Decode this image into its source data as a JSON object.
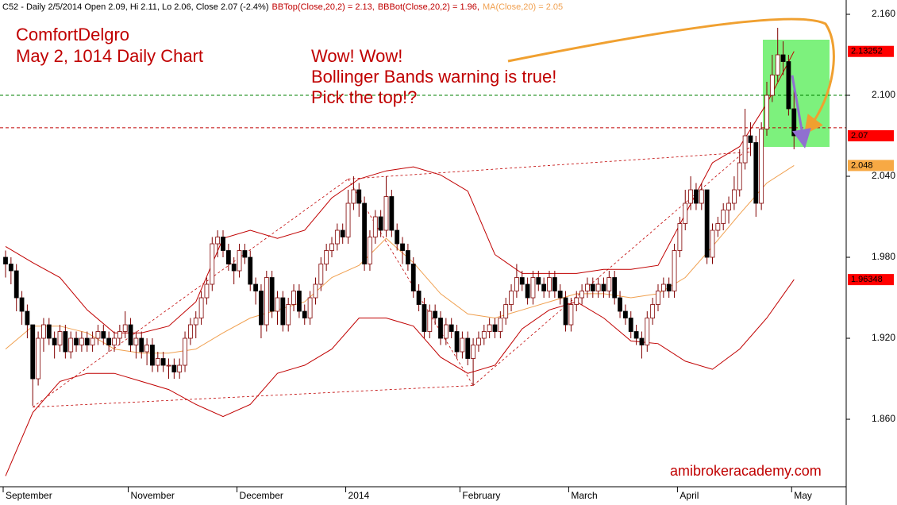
{
  "chart_data": {
    "type": "candlestick",
    "header": "C52 - Daily 2/5/2014 Open 2.09, Hi 2.11, Lo 2.06, Close 2.07 (-2.4%)",
    "title": "ComfortDelgro",
    "subtitle": "May 2, 1014 Daily Chart",
    "annotations": [
      "Wow! Wow!",
      "Bollinger Bands warning is true!",
      "Pick the top!?"
    ],
    "watermark": "amibrokeracademy.com",
    "ylim": [
      1.8106,
      2.1706
    ],
    "yticks": [
      {
        "value": 1.86,
        "label": "1.860"
      },
      {
        "value": 1.92,
        "label": "1.920"
      },
      {
        "value": 1.98,
        "label": "1.980"
      },
      {
        "value": 2.04,
        "label": "2.040"
      },
      {
        "value": 2.1,
        "label": "2.100"
      },
      {
        "value": 2.16,
        "label": "2.160"
      }
    ],
    "categories": [
      "September",
      null,
      null,
      null,
      null,
      null,
      null,
      null,
      null,
      null,
      null,
      null,
      null,
      null,
      null,
      null,
      null,
      null,
      null,
      null,
      null,
      null,
      null,
      "November",
      null,
      null,
      null,
      null,
      null,
      null,
      null,
      null,
      null,
      null,
      null,
      null,
      null,
      null,
      null,
      null,
      null,
      null,
      null,
      "December",
      null,
      null,
      null,
      null,
      null,
      null,
      null,
      null,
      null,
      null,
      null,
      null,
      null,
      null,
      null,
      null,
      null,
      null,
      null,
      "2014",
      null,
      null,
      null,
      null,
      null,
      null,
      null,
      null,
      null,
      null,
      null,
      null,
      null,
      null,
      null,
      null,
      null,
      null,
      null,
      null,
      "February",
      null,
      null,
      null,
      null,
      null,
      null,
      null,
      null,
      null,
      null,
      null,
      null,
      null,
      null,
      null,
      null,
      null,
      null,
      null,
      "March",
      null,
      null,
      null,
      null,
      null,
      null,
      null,
      null,
      null,
      null,
      null,
      null,
      null,
      null,
      null,
      null,
      null,
      null,
      null,
      "April",
      null,
      null,
      null,
      null,
      null,
      null,
      null,
      null,
      null,
      null,
      null,
      null,
      null,
      null,
      null,
      null,
      null,
      null,
      null,
      null,
      "May"
    ],
    "up_color": "#ffffff",
    "down_color": "#000000",
    "wick_color": "#800000",
    "ohlc": [
      [
        1.98,
        1.985,
        1.965,
        1.975
      ],
      [
        1.975,
        1.98,
        1.96,
        1.97
      ],
      [
        1.97,
        1.975,
        1.94,
        1.95
      ],
      [
        1.95,
        1.955,
        1.93,
        1.94
      ],
      [
        1.94,
        1.945,
        1.92,
        1.93
      ],
      [
        1.93,
        1.93,
        1.87,
        1.89
      ],
      [
        1.89,
        1.925,
        1.885,
        1.92
      ],
      [
        1.92,
        1.935,
        1.91,
        1.93
      ],
      [
        1.93,
        1.935,
        1.915,
        1.92
      ],
      [
        1.92,
        1.925,
        1.905,
        1.915
      ],
      [
        1.915,
        1.93,
        1.91,
        1.925
      ],
      [
        1.925,
        1.93,
        1.905,
        1.91
      ],
      [
        1.91,
        1.925,
        1.905,
        1.92
      ],
      [
        1.92,
        1.925,
        1.91,
        1.915
      ],
      [
        1.915,
        1.925,
        1.91,
        1.92
      ],
      [
        1.92,
        1.925,
        1.91,
        1.915
      ],
      [
        1.915,
        1.925,
        1.91,
        1.92
      ],
      [
        1.92,
        1.93,
        1.915,
        1.925
      ],
      [
        1.925,
        1.93,
        1.915,
        1.92
      ],
      [
        1.92,
        1.925,
        1.91,
        1.915
      ],
      [
        1.915,
        1.925,
        1.91,
        1.92
      ],
      [
        1.92,
        1.93,
        1.915,
        1.925
      ],
      [
        1.925,
        1.94,
        1.92,
        1.93
      ],
      [
        1.93,
        1.935,
        1.91,
        1.915
      ],
      [
        1.915,
        1.925,
        1.905,
        1.92
      ],
      [
        1.92,
        1.925,
        1.905,
        1.91
      ],
      [
        1.91,
        1.92,
        1.9,
        1.915
      ],
      [
        1.915,
        1.92,
        1.895,
        1.9
      ],
      [
        1.9,
        1.91,
        1.895,
        1.905
      ],
      [
        1.905,
        1.91,
        1.895,
        1.9
      ],
      [
        1.9,
        1.905,
        1.89,
        1.9
      ],
      [
        1.9,
        1.905,
        1.89,
        1.895
      ],
      [
        1.895,
        1.905,
        1.89,
        1.9
      ],
      [
        1.9,
        1.925,
        1.895,
        1.92
      ],
      [
        1.92,
        1.935,
        1.915,
        1.93
      ],
      [
        1.93,
        1.94,
        1.92,
        1.935
      ],
      [
        1.935,
        1.955,
        1.93,
        1.95
      ],
      [
        1.95,
        1.965,
        1.945,
        1.96
      ],
      [
        1.96,
        1.995,
        1.955,
        1.99
      ],
      [
        1.99,
        2.0,
        1.98,
        1.995
      ],
      [
        1.995,
        2.0,
        1.98,
        1.985
      ],
      [
        1.985,
        1.99,
        1.97,
        1.975
      ],
      [
        1.975,
        1.98,
        1.96,
        1.97
      ],
      [
        1.97,
        1.99,
        1.965,
        1.985
      ],
      [
        1.985,
        1.99,
        1.975,
        1.98
      ],
      [
        1.98,
        1.985,
        1.955,
        1.96
      ],
      [
        1.96,
        1.965,
        1.945,
        1.955
      ],
      [
        1.955,
        1.96,
        1.92,
        1.93
      ],
      [
        1.93,
        1.97,
        1.925,
        1.965
      ],
      [
        1.965,
        1.97,
        1.935,
        1.94
      ],
      [
        1.94,
        1.955,
        1.93,
        1.95
      ],
      [
        1.95,
        1.955,
        1.925,
        1.93
      ],
      [
        1.93,
        1.95,
        1.925,
        1.945
      ],
      [
        1.945,
        1.96,
        1.94,
        1.955
      ],
      [
        1.955,
        1.96,
        1.935,
        1.94
      ],
      [
        1.94,
        1.945,
        1.93,
        1.935
      ],
      [
        1.935,
        1.955,
        1.93,
        1.95
      ],
      [
        1.95,
        1.965,
        1.945,
        1.96
      ],
      [
        1.96,
        1.98,
        1.955,
        1.975
      ],
      [
        1.975,
        1.99,
        1.97,
        1.985
      ],
      [
        1.985,
        1.995,
        1.98,
        1.99
      ],
      [
        1.99,
        2.005,
        1.985,
        2.0
      ],
      [
        2.0,
        2.005,
        1.99,
        1.995
      ],
      [
        1.995,
        2.03,
        1.99,
        2.02
      ],
      [
        2.02,
        2.04,
        2.015,
        2.03
      ],
      [
        2.03,
        2.035,
        2.01,
        2.02
      ],
      [
        2.02,
        2.025,
        1.97,
        1.975
      ],
      [
        1.975,
        2.0,
        1.97,
        1.995
      ],
      [
        1.995,
        2.015,
        1.99,
        2.01
      ],
      [
        2.01,
        2.015,
        1.995,
        2.0
      ],
      [
        2.0,
        2.04,
        1.995,
        2.025
      ],
      [
        2.025,
        2.03,
        1.995,
        2.0
      ],
      [
        2.0,
        2.005,
        1.985,
        1.99
      ],
      [
        1.99,
        1.995,
        1.975,
        1.985
      ],
      [
        1.985,
        1.99,
        1.97,
        1.975
      ],
      [
        1.975,
        1.98,
        1.95,
        1.955
      ],
      [
        1.955,
        1.96,
        1.94,
        1.945
      ],
      [
        1.945,
        1.95,
        1.92,
        1.925
      ],
      [
        1.925,
        1.945,
        1.92,
        1.94
      ],
      [
        1.94,
        1.945,
        1.93,
        1.935
      ],
      [
        1.935,
        1.94,
        1.915,
        1.92
      ],
      [
        1.92,
        1.935,
        1.915,
        1.93
      ],
      [
        1.93,
        1.935,
        1.92,
        1.925
      ],
      [
        1.925,
        1.93,
        1.905,
        1.91
      ],
      [
        1.91,
        1.925,
        1.905,
        1.92
      ],
      [
        1.92,
        1.925,
        1.9,
        1.905
      ],
      [
        1.905,
        1.92,
        1.885,
        1.915
      ],
      [
        1.915,
        1.925,
        1.91,
        1.92
      ],
      [
        1.92,
        1.93,
        1.915,
        1.925
      ],
      [
        1.925,
        1.935,
        1.92,
        1.93
      ],
      [
        1.93,
        1.935,
        1.92,
        1.925
      ],
      [
        1.925,
        1.94,
        1.92,
        1.935
      ],
      [
        1.935,
        1.95,
        1.93,
        1.945
      ],
      [
        1.945,
        1.96,
        1.94,
        1.955
      ],
      [
        1.955,
        1.975,
        1.95,
        1.965
      ],
      [
        1.965,
        1.97,
        1.955,
        1.96
      ],
      [
        1.96,
        1.965,
        1.945,
        1.95
      ],
      [
        1.95,
        1.97,
        1.945,
        1.965
      ],
      [
        1.965,
        1.97,
        1.955,
        1.96
      ],
      [
        1.96,
        1.965,
        1.95,
        1.955
      ],
      [
        1.955,
        1.97,
        1.95,
        1.965
      ],
      [
        1.965,
        1.97,
        1.95,
        1.955
      ],
      [
        1.955,
        1.96,
        1.945,
        1.95
      ],
      [
        1.95,
        1.955,
        1.925,
        1.93
      ],
      [
        1.93,
        1.95,
        1.925,
        1.945
      ],
      [
        1.945,
        1.955,
        1.94,
        1.95
      ],
      [
        1.95,
        1.96,
        1.945,
        1.955
      ],
      [
        1.955,
        1.965,
        1.95,
        1.96
      ],
      [
        1.96,
        1.965,
        1.95,
        1.955
      ],
      [
        1.955,
        1.965,
        1.95,
        1.96
      ],
      [
        1.96,
        1.965,
        1.95,
        1.955
      ],
      [
        1.955,
        1.97,
        1.95,
        1.965
      ],
      [
        1.965,
        1.97,
        1.945,
        1.95
      ],
      [
        1.95,
        1.955,
        1.935,
        1.94
      ],
      [
        1.94,
        1.945,
        1.93,
        1.935
      ],
      [
        1.935,
        1.94,
        1.92,
        1.925
      ],
      [
        1.925,
        1.93,
        1.915,
        1.92
      ],
      [
        1.92,
        1.925,
        1.905,
        1.915
      ],
      [
        1.915,
        1.94,
        1.91,
        1.935
      ],
      [
        1.935,
        1.95,
        1.93,
        1.945
      ],
      [
        1.945,
        1.96,
        1.94,
        1.955
      ],
      [
        1.955,
        1.965,
        1.95,
        1.96
      ],
      [
        1.96,
        1.965,
        1.95,
        1.955
      ],
      [
        1.955,
        1.99,
        1.95,
        1.985
      ],
      [
        1.985,
        2.01,
        1.98,
        2.005
      ],
      [
        2.005,
        2.03,
        2.0,
        2.02
      ],
      [
        2.02,
        2.04,
        2.015,
        2.03
      ],
      [
        2.03,
        2.035,
        2.015,
        2.02
      ],
      [
        2.02,
        2.035,
        2.015,
        2.03
      ],
      [
        2.03,
        2.03,
        1.975,
        1.98
      ],
      [
        1.98,
        2.005,
        1.975,
        2.0
      ],
      [
        2.0,
        2.01,
        1.995,
        2.005
      ],
      [
        2.005,
        2.02,
        2.0,
        2.015
      ],
      [
        2.015,
        2.025,
        2.005,
        2.02
      ],
      [
        2.02,
        2.04,
        2.015,
        2.03
      ],
      [
        2.03,
        2.06,
        2.025,
        2.05
      ],
      [
        2.05,
        2.09,
        2.045,
        2.07
      ],
      [
        2.07,
        2.08,
        2.055,
        2.065
      ],
      [
        2.065,
        2.07,
        2.01,
        2.02
      ],
      [
        2.02,
        2.08,
        2.015,
        2.075
      ],
      [
        2.075,
        2.11,
        2.07,
        2.1
      ],
      [
        2.1,
        2.13,
        2.095,
        2.115
      ],
      [
        2.115,
        2.15,
        2.11,
        2.13
      ],
      [
        2.13,
        2.14,
        2.115,
        2.125
      ],
      [
        2.125,
        2.13,
        2.085,
        2.09
      ],
      [
        2.09,
        2.11,
        2.06,
        2.07
      ]
    ],
    "close_label_color": "#ff0000",
    "overlays": [
      {
        "label": "BBTop(Close,20,2) = 2.13,",
        "color": "#c00000",
        "box_color": "#ff0000",
        "x": [
          0,
          5,
          10,
          15,
          20,
          25,
          30,
          35,
          40,
          45,
          50,
          55,
          60,
          65,
          70,
          75,
          80,
          85,
          90,
          95,
          100,
          105,
          110,
          115,
          120,
          125,
          130,
          135,
          140,
          145
        ],
        "values": [
          1.988,
          1.976,
          1.965,
          1.941,
          1.924,
          1.924,
          1.929,
          1.947,
          1.994,
          2.0,
          1.994,
          2.0,
          2.024,
          2.038,
          2.044,
          2.047,
          2.041,
          2.029,
          1.982,
          1.968,
          1.968,
          1.968,
          1.971,
          1.971,
          1.974,
          2.012,
          2.05,
          2.062,
          2.094,
          2.13252
        ]
      },
      {
        "label": "BBBot(Close,20,2) = 1.96,",
        "color": "#c00000",
        "box_color": "#ff0000",
        "x": [
          0,
          5,
          10,
          15,
          20,
          25,
          30,
          35,
          40,
          45,
          50,
          55,
          60,
          65,
          70,
          75,
          80,
          85,
          90,
          95,
          100,
          105,
          110,
          115,
          120,
          125,
          130,
          135,
          140,
          145
        ],
        "values": [
          1.818,
          1.865,
          1.888,
          1.894,
          1.894,
          1.888,
          1.882,
          1.871,
          1.862,
          1.871,
          1.894,
          1.9,
          1.912,
          1.935,
          1.935,
          1.929,
          1.906,
          1.894,
          1.9,
          1.927,
          1.941,
          1.947,
          1.935,
          1.918,
          1.916,
          1.903,
          1.897,
          1.912,
          1.935,
          1.96348
        ]
      },
      {
        "label": "MA(Close,20) = 2.05",
        "color": "#f0a050",
        "box_color": "#f7a944",
        "x": [
          0,
          5,
          10,
          15,
          20,
          25,
          30,
          35,
          40,
          45,
          50,
          55,
          60,
          65,
          70,
          75,
          80,
          85,
          90,
          95,
          100,
          105,
          110,
          115,
          120,
          125,
          130,
          135,
          140,
          145
        ],
        "values": [
          1.912,
          1.929,
          1.929,
          1.924,
          1.912,
          1.909,
          1.909,
          1.912,
          1.924,
          1.935,
          1.941,
          1.947,
          1.965,
          1.974,
          1.994,
          1.976,
          1.953,
          1.938,
          1.935,
          1.941,
          1.947,
          1.953,
          1.953,
          1.95,
          1.953,
          1.965,
          1.988,
          2.012,
          2.035,
          2.048
        ]
      }
    ],
    "ref_lines": [
      {
        "value": 2.1,
        "color": "#008000"
      },
      {
        "value": 2.076,
        "color": "#c00000"
      }
    ],
    "trend_lines": [
      {
        "x": [
          5,
          86
        ],
        "y": [
          1.869,
          1.885
        ]
      },
      {
        "x": [
          5,
          63
        ],
        "y": [
          1.869,
          2.038
        ]
      },
      {
        "x": [
          63,
          86
        ],
        "y": [
          2.038,
          1.885
        ]
      },
      {
        "x": [
          86,
          137
        ],
        "y": [
          1.885,
          2.062
        ]
      },
      {
        "x": [
          63,
          137
        ],
        "y": [
          2.038,
          2.058
        ]
      }
    ]
  }
}
